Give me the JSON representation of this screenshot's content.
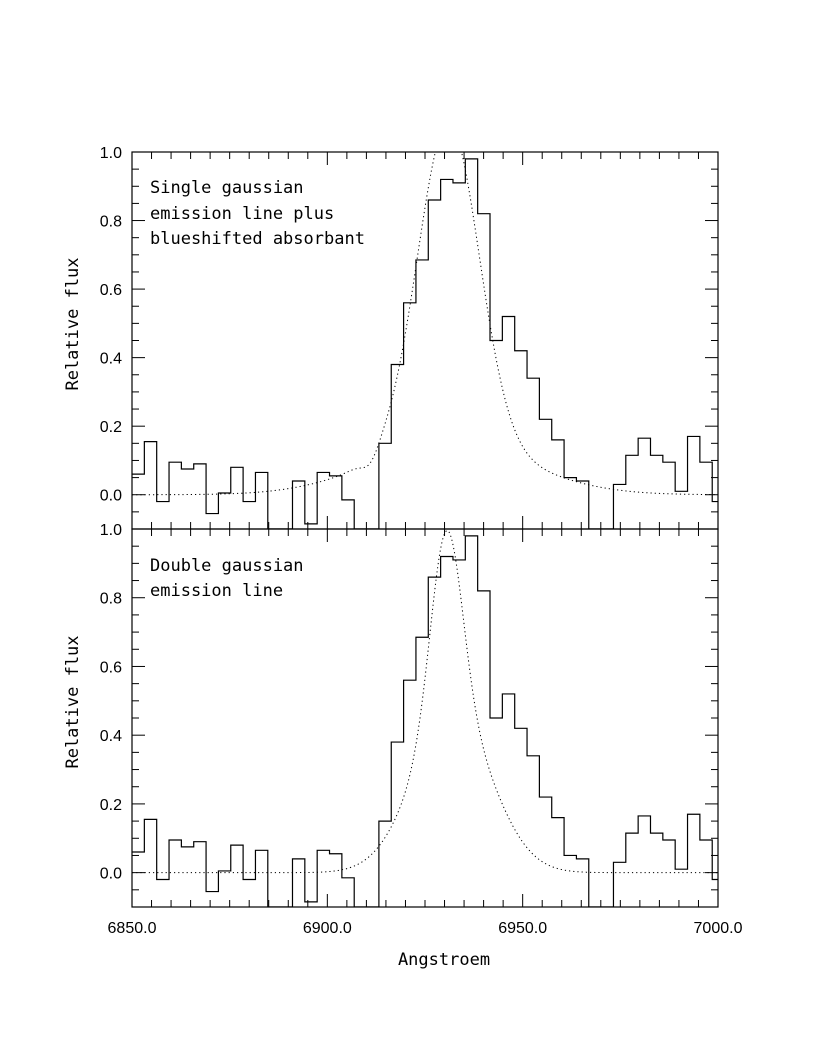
{
  "chart_data": [
    {
      "type": "line",
      "panel": "top",
      "annotation": [
        "Single gaussian",
        "emission line plus",
        "blueshifted absorbant"
      ],
      "xlabel": "",
      "ylabel": "Relative flux",
      "xlim": [
        6850.0,
        7000.0
      ],
      "ylim": [
        -0.1,
        1.0
      ],
      "ytick_labels": [
        "1.0",
        "0.8",
        "0.6",
        "0.4",
        "0.2",
        "0.0"
      ],
      "series": [
        {
          "style": "histogram",
          "x_edges": [
            6850.0,
            6853.16,
            6856.32,
            6859.48,
            6862.64,
            6865.8,
            6868.96,
            6872.12,
            6875.28,
            6878.44,
            6881.6,
            6884.76,
            6887.92,
            6891.08,
            6894.24,
            6897.4,
            6900.56,
            6903.72,
            6906.88,
            6910.04,
            6913.2,
            6916.36,
            6919.52,
            6922.68,
            6925.84,
            6929.0,
            6932.16,
            6935.32,
            6938.48,
            6941.64,
            6944.8,
            6947.96,
            6951.12,
            6954.28,
            6957.44,
            6960.6,
            6963.76,
            6966.92,
            6970.08,
            6973.24,
            6976.4,
            6979.56,
            6982.72,
            6985.88,
            6989.04,
            6992.2,
            6995.36,
            6998.52
          ],
          "values": [
            0.06,
            0.155,
            -0.02,
            0.095,
            0.075,
            0.09,
            -0.055,
            0.005,
            0.08,
            -0.02,
            0.065,
            -0.1,
            -0.1,
            0.04,
            -0.085,
            0.065,
            0.055,
            -0.015,
            -0.1,
            -0.1,
            0.15,
            0.38,
            0.56,
            0.685,
            0.86,
            0.92,
            0.91,
            0.98,
            0.82,
            0.45,
            0.52,
            0.42,
            0.34,
            0.22,
            0.16,
            0.05,
            0.04,
            -0.1,
            -0.1,
            0.03,
            0.115,
            0.165,
            0.115,
            0.095,
            0.01,
            0.17,
            0.095,
            -0.02
          ]
        },
        {
          "style": "dotted",
          "model": "gaussian fit",
          "center": 6931.0,
          "amplitude": 0.94,
          "sigma": 7.8,
          "wing_amplitude": 0.145,
          "wing_sigma": 20.0,
          "absorption_center": 6911.0,
          "absorption_depth": 0.03,
          "absorption_sigma": 2.0
        }
      ]
    },
    {
      "type": "line",
      "panel": "bottom",
      "annotation": [
        "Double gaussian",
        "emission line"
      ],
      "xlabel": "Angstroem",
      "ylabel": "Relative flux",
      "xlim": [
        6850.0,
        7000.0
      ],
      "ylim": [
        -0.1,
        1.0
      ],
      "ytick_labels": [
        "1.0",
        "0.8",
        "0.6",
        "0.4",
        "0.2",
        "0.0"
      ],
      "xtick_labels": [
        "6850.0",
        "6900.0",
        "6950.0",
        "7000.0"
      ],
      "series": [
        {
          "style": "histogram",
          "x_edges": [
            6850.0,
            6853.16,
            6856.32,
            6859.48,
            6862.64,
            6865.8,
            6868.96,
            6872.12,
            6875.28,
            6878.44,
            6881.6,
            6884.76,
            6887.92,
            6891.08,
            6894.24,
            6897.4,
            6900.56,
            6903.72,
            6906.88,
            6910.04,
            6913.2,
            6916.36,
            6919.52,
            6922.68,
            6925.84,
            6929.0,
            6932.16,
            6935.32,
            6938.48,
            6941.64,
            6944.8,
            6947.96,
            6951.12,
            6954.28,
            6957.44,
            6960.6,
            6963.76,
            6966.92,
            6970.08,
            6973.24,
            6976.4,
            6979.56,
            6982.72,
            6985.88,
            6989.04,
            6992.2,
            6995.36,
            6998.52
          ],
          "values": [
            0.06,
            0.155,
            -0.02,
            0.095,
            0.075,
            0.09,
            -0.055,
            0.005,
            0.08,
            -0.02,
            0.065,
            -0.1,
            -0.1,
            0.04,
            -0.085,
            0.065,
            0.055,
            -0.015,
            -0.1,
            -0.1,
            0.15,
            0.38,
            0.56,
            0.685,
            0.86,
            0.92,
            0.91,
            0.98,
            0.82,
            0.45,
            0.52,
            0.42,
            0.34,
            0.22,
            0.16,
            0.05,
            0.04,
            -0.1,
            -0.1,
            0.03,
            0.115,
            0.165,
            0.115,
            0.095,
            0.01,
            0.17,
            0.095,
            -0.02
          ]
        },
        {
          "style": "dotted",
          "model": "double gaussian fit",
          "components": [
            {
              "center": 6930.5,
              "amplitude": 0.55,
              "sigma": 4.0
            },
            {
              "center": 6932.0,
              "amplitude": 0.45,
              "sigma": 10.0
            }
          ]
        }
      ]
    }
  ]
}
